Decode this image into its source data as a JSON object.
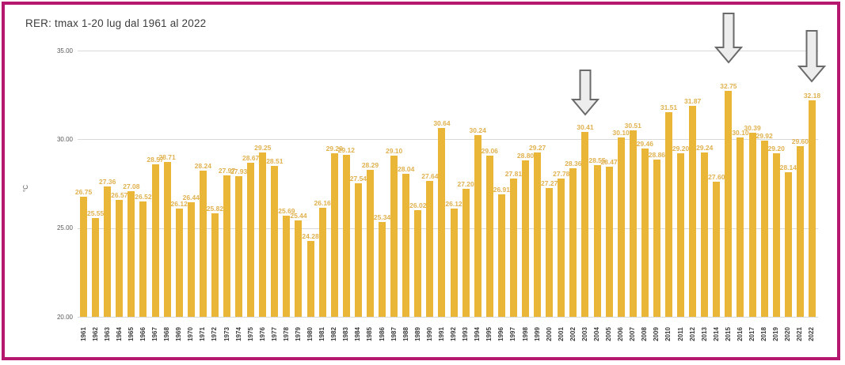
{
  "window": {
    "border_color": "#b5186e",
    "background": "#ffffff"
  },
  "chart_data": {
    "type": "bar",
    "title": "RER: tmax 1-20 lug dal 1961 al 2022",
    "xlabel": "",
    "ylabel": "°C",
    "ylim": [
      20,
      35
    ],
    "yticks": [
      "35.00",
      "30.00",
      "25.00",
      "20.00"
    ],
    "grid": true,
    "legend_position": "none",
    "bar_color": "#e9b637",
    "value_label_color": "#e0b14e",
    "categories": [
      1961,
      1962,
      1963,
      1964,
      1965,
      1966,
      1967,
      1968,
      1969,
      1970,
      1971,
      1972,
      1973,
      1974,
      1975,
      1976,
      1977,
      1978,
      1979,
      1980,
      1981,
      1982,
      1983,
      1984,
      1985,
      1986,
      1987,
      1988,
      1989,
      1990,
      1991,
      1992,
      1993,
      1994,
      1995,
      1996,
      1997,
      1998,
      1999,
      2000,
      2001,
      2002,
      2003,
      2004,
      2005,
      2006,
      2007,
      2008,
      2009,
      2010,
      2011,
      2012,
      2013,
      2014,
      2015,
      2016,
      2017,
      2018,
      2019,
      2020,
      2021,
      2022
    ],
    "values": [
      26.75,
      25.55,
      27.36,
      26.57,
      27.08,
      26.52,
      28.57,
      28.71,
      26.12,
      26.44,
      28.24,
      25.82,
      27.97,
      27.93,
      28.67,
      29.25,
      28.51,
      25.69,
      25.44,
      24.28,
      26.16,
      29.2,
      29.12,
      27.54,
      28.29,
      25.34,
      29.1,
      28.04,
      26.02,
      27.64,
      30.64,
      26.12,
      27.2,
      30.24,
      29.06,
      26.91,
      27.81,
      28.8,
      29.27,
      27.27,
      27.78,
      28.36,
      30.41,
      28.55,
      28.47,
      30.1,
      30.51,
      29.46,
      28.86,
      31.51,
      29.2,
      31.87,
      29.24,
      27.6,
      32.75,
      30.1,
      30.39,
      29.92,
      29.2,
      28.14,
      29.6,
      32.18
    ],
    "annotations": {
      "style": "outlined-down-arrow",
      "arrow_fill": "#ededed",
      "arrow_stroke": "#6a6a6a",
      "arrow_years": [
        2003,
        2015,
        2022
      ]
    }
  }
}
